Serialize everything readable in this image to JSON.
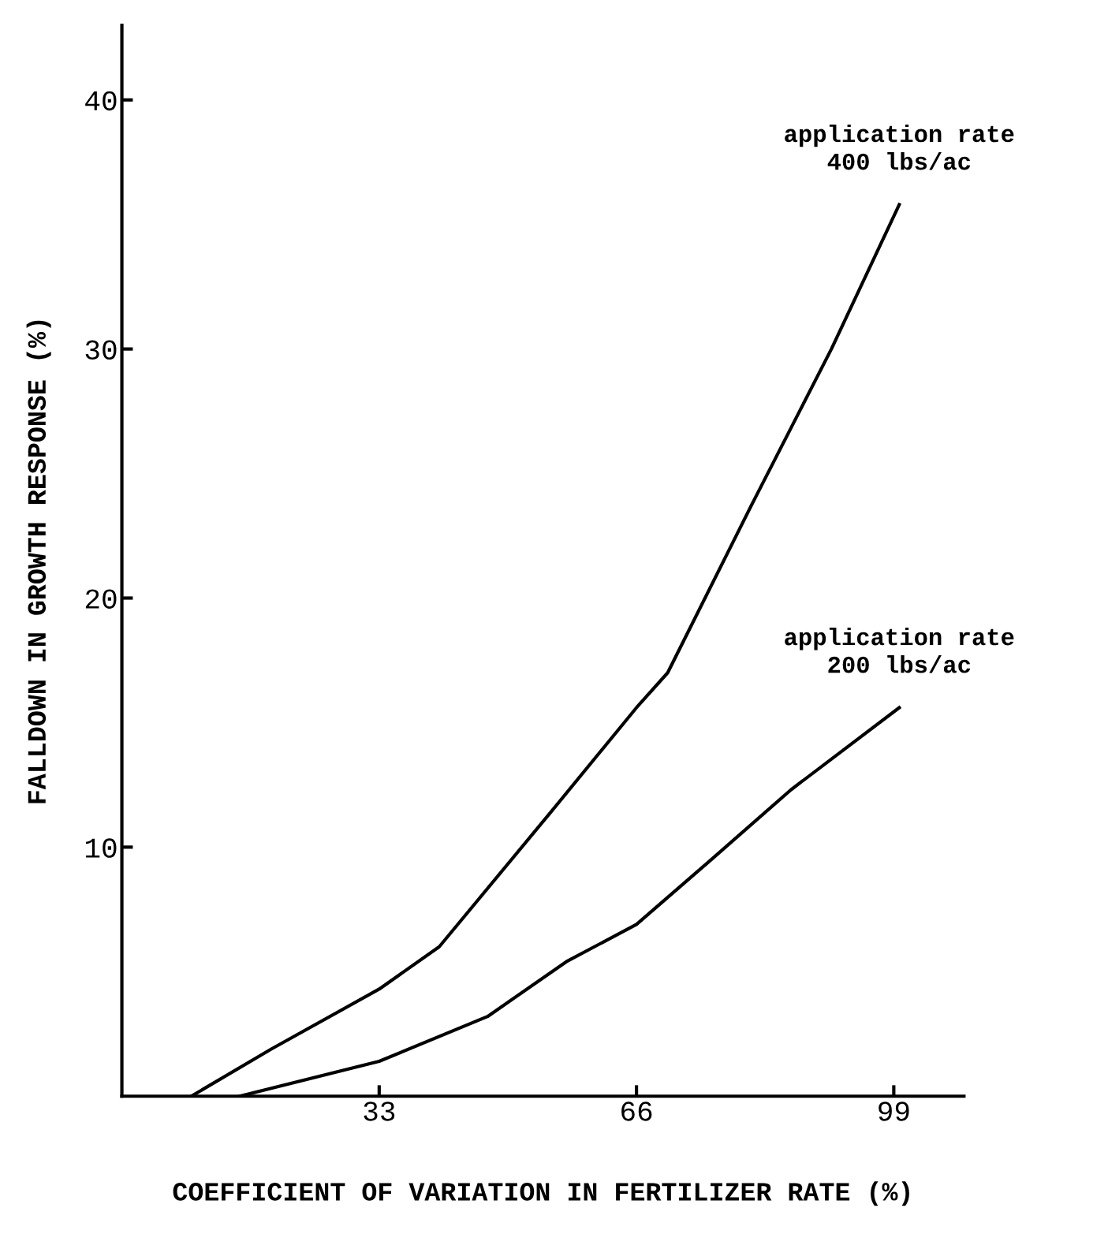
{
  "chart_data": {
    "type": "line",
    "xlabel": "COEFFICIENT OF VARIATION IN FERTILIZER RATE (%)",
    "ylabel": "FALLDOWN IN GROWTH RESPONSE (%)",
    "xlim": [
      0,
      108
    ],
    "xticks": [
      33,
      66,
      99
    ],
    "ylim": [
      0,
      43
    ],
    "yticks": [
      10,
      20,
      30,
      40
    ],
    "grid": false,
    "legend": false,
    "marker": "none",
    "line_style": "solid",
    "series": [
      {
        "name": "application rate\n400 lbs/ac",
        "color": "#000000",
        "x": [
          8.9,
          19.2,
          33,
          40.7,
          55,
          66,
          70,
          80.7,
          91,
          99.7
        ],
        "values": [
          0,
          1.9,
          4.3,
          6.0,
          11.4,
          15.6,
          17.0,
          23.7,
          30.0,
          35.8
        ]
      },
      {
        "name": "application rate\n200 lbs/ac",
        "color": "#000000",
        "x": [
          15.1,
          33,
          46.9,
          57,
          66,
          75.6,
          85.8,
          99.7
        ],
        "values": [
          0,
          1.4,
          3.2,
          5.4,
          6.9,
          9.5,
          12.3,
          15.6
        ]
      }
    ]
  }
}
